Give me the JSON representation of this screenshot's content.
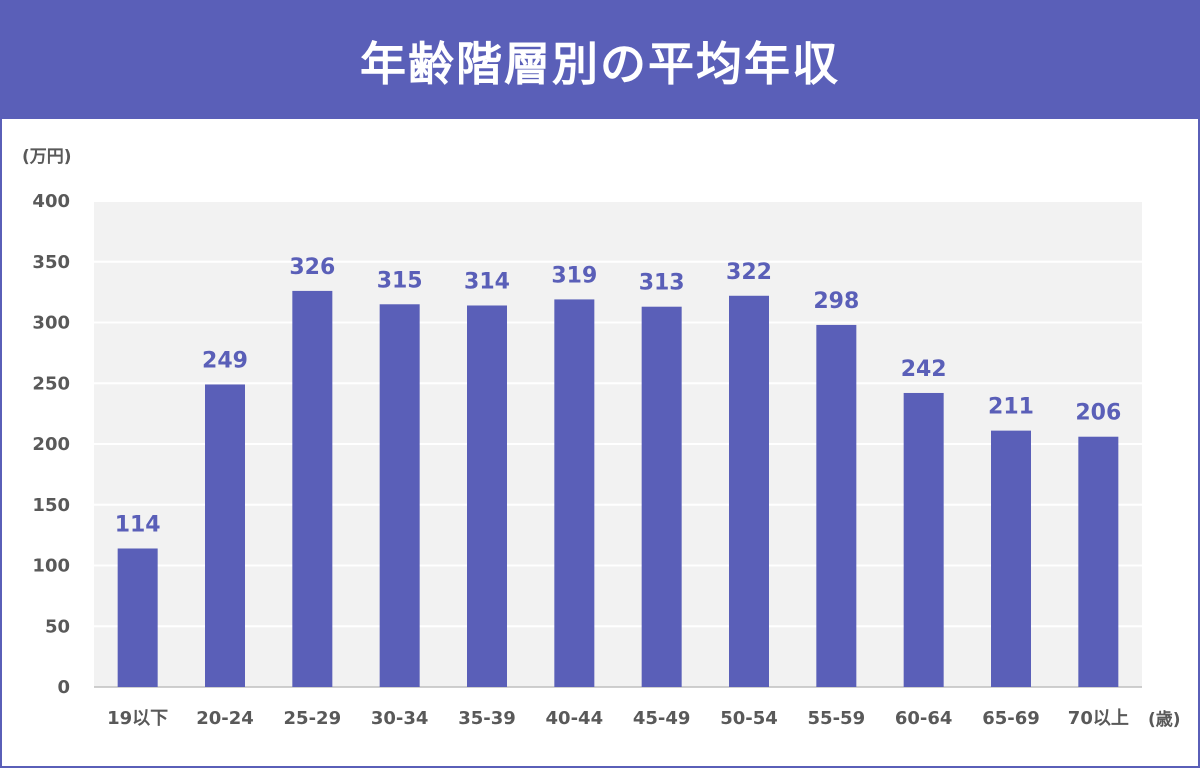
{
  "title": "年齢階層別の平均年収",
  "colors": {
    "accent": "#5a5fb8",
    "plot_bg": "#f2f2f2",
    "text": "#595959"
  },
  "chart_data": {
    "type": "bar",
    "title": "年齢階層別の平均年収",
    "ylabel": "(万円)",
    "xlabel": "(歳)",
    "categories": [
      "19以下",
      "20-24",
      "25-29",
      "30-34",
      "35-39",
      "40-44",
      "45-49",
      "50-54",
      "55-59",
      "60-64",
      "65-69",
      "70以上"
    ],
    "values": [
      114,
      249,
      326,
      315,
      314,
      319,
      313,
      322,
      298,
      242,
      211,
      206
    ],
    "yticks": [
      0,
      50,
      100,
      150,
      200,
      250,
      300,
      350,
      400
    ],
    "ylim": [
      0,
      400
    ],
    "grid": true,
    "data_labels": true,
    "legend": "none"
  }
}
